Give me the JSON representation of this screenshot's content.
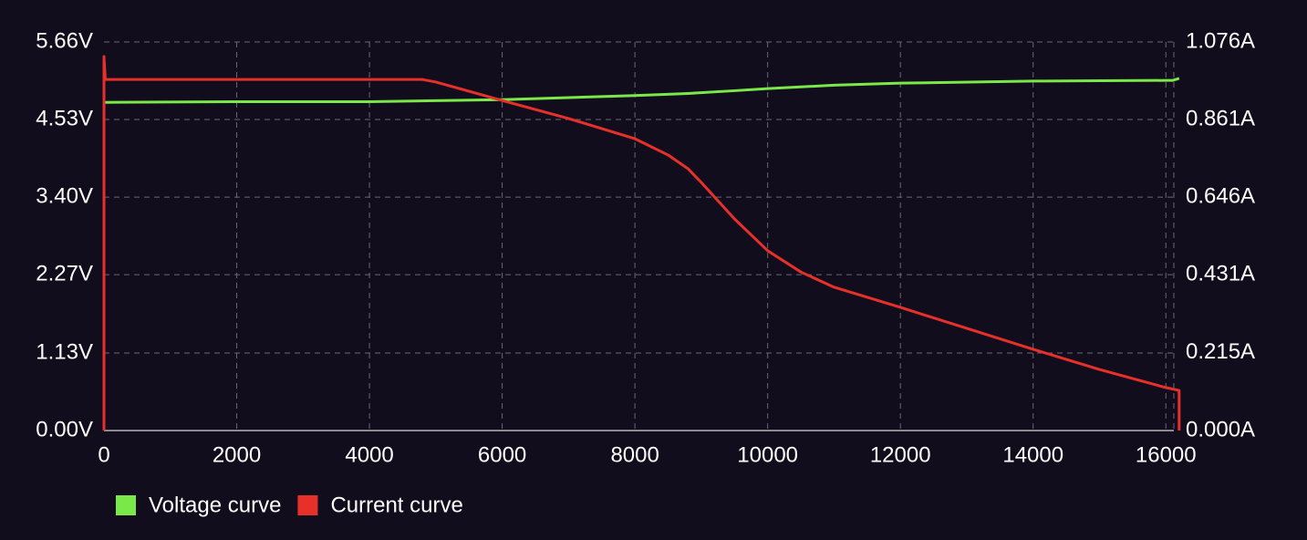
{
  "chart_data": {
    "type": "line",
    "xlim": [
      0,
      16120
    ],
    "xticks": [
      0,
      2000,
      4000,
      6000,
      8000,
      10000,
      12000,
      14000,
      16000
    ],
    "ylim": [
      0,
      5.66
    ],
    "yticks": [
      {
        "value": 0,
        "label": "0.00V"
      },
      {
        "value": 1.13,
        "label": "1.13V"
      },
      {
        "value": 2.27,
        "label": "2.27V"
      },
      {
        "value": 3.4,
        "label": "3.40V"
      },
      {
        "value": 4.53,
        "label": "4.53V"
      },
      {
        "value": 5.66,
        "label": "5.66V"
      }
    ],
    "y2lim": [
      0,
      1.076
    ],
    "y2ticks": [
      {
        "value": 0,
        "label": "0.000A"
      },
      {
        "value": 0.215,
        "label": "0.215A"
      },
      {
        "value": 0.431,
        "label": "0.431A"
      },
      {
        "value": 0.646,
        "label": "0.646A"
      },
      {
        "value": 0.861,
        "label": "0.861A"
      },
      {
        "value": 1.076,
        "label": "1.076A"
      }
    ],
    "grid": true,
    "legend": "bottom-left",
    "series": [
      {
        "name": "Voltage curve",
        "color": "#7be84a",
        "x": [
          0,
          2000,
          4000,
          6000,
          8000,
          8800,
          9500,
          10000,
          11000,
          12000,
          14000,
          16000,
          16100,
          16200
        ],
        "values": [
          4.78,
          4.79,
          4.79,
          4.82,
          4.88,
          4.91,
          4.95,
          4.98,
          5.03,
          5.06,
          5.09,
          5.1,
          5.1,
          5.13
        ]
      },
      {
        "name": "Current curve",
        "color": "#e8302a",
        "axis": "y2",
        "x": [
          0,
          0,
          20,
          4800,
          5000,
          6000,
          7000,
          8000,
          8500,
          8800,
          9000,
          9500,
          10000,
          10500,
          11000,
          12000,
          13000,
          14000,
          15000,
          16000,
          16200,
          16200
        ],
        "values": [
          0,
          1.036,
          0.972,
          0.972,
          0.965,
          0.914,
          0.864,
          0.808,
          0.763,
          0.725,
          0.687,
          0.586,
          0.498,
          0.439,
          0.397,
          0.341,
          0.283,
          0.225,
          0.169,
          0.119,
          0.111,
          0
        ]
      }
    ]
  }
}
